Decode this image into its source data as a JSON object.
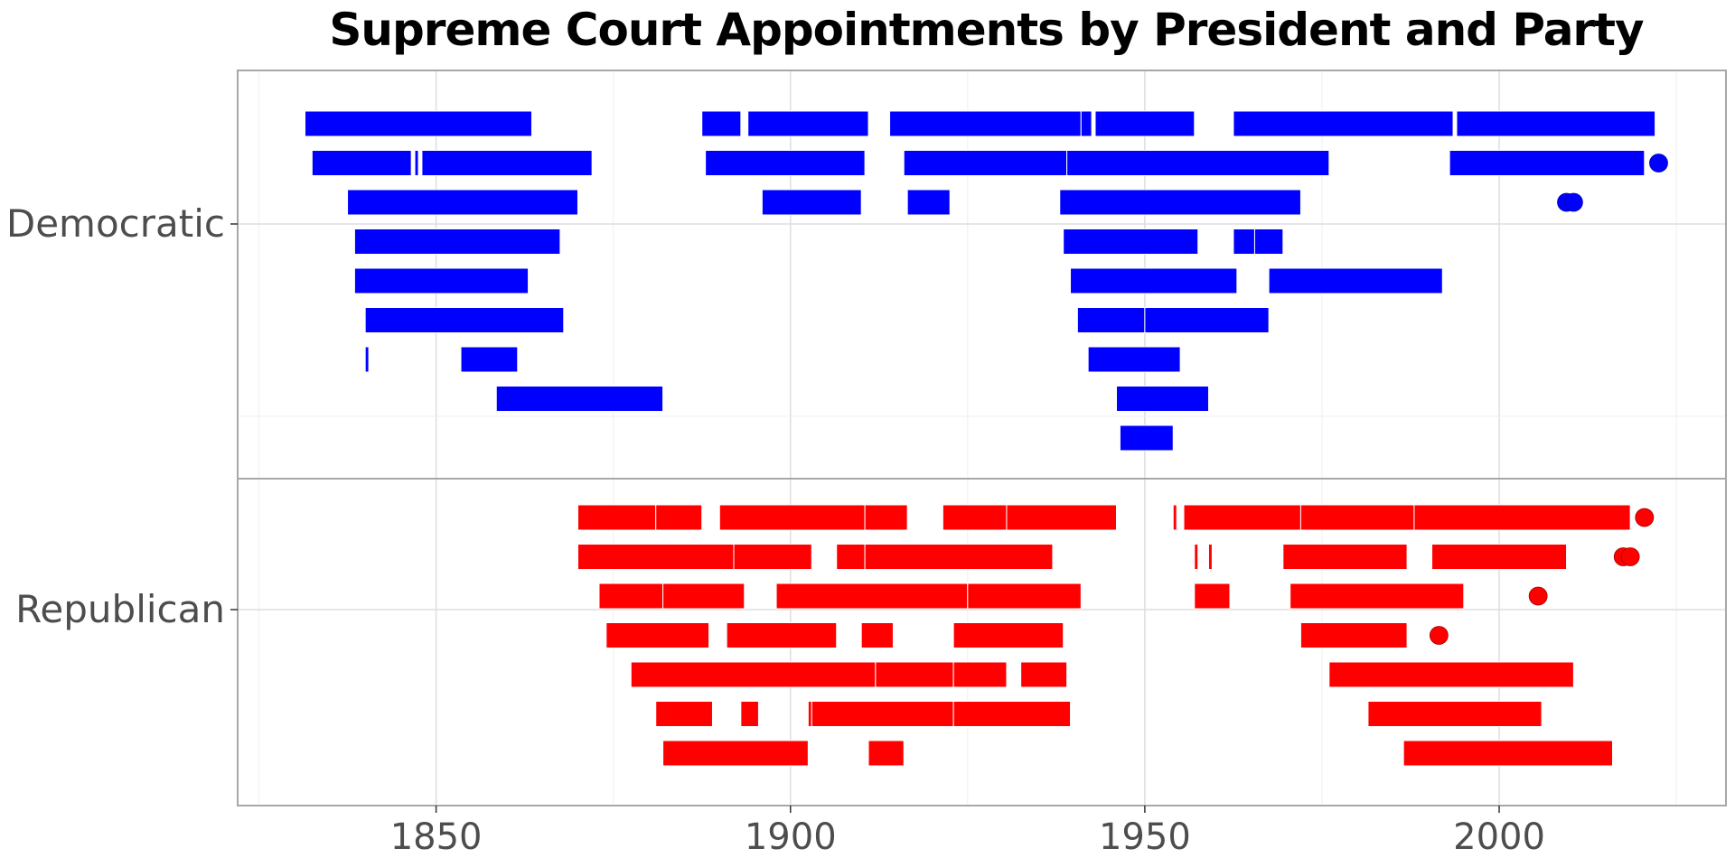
{
  "chart_data": {
    "type": "bar",
    "title": "Supreme Court Appointments by President and Party",
    "xlabel": "",
    "ylabel": "",
    "xlim": [
      1822,
      2032
    ],
    "x_ticks": [
      1850,
      1900,
      1950,
      2000
    ],
    "grid": true,
    "legend": "none",
    "colors": {
      "Democratic": "#0000ff",
      "Republican": "#ff0000"
    },
    "panels": [
      {
        "name": "Democratic",
        "rows": [
          {
            "segments": [
              [
                1831.5,
                1863.5
              ],
              [
                1887.5,
                1893.0
              ],
              [
                1894.0,
                1911.0
              ],
              [
                1914.0,
                1941.0
              ],
              [
                1941.0,
                1942.5
              ],
              [
                1943.0,
                1957.0
              ],
              [
                1962.5,
                1993.5
              ],
              [
                1994.0,
                2022.0
              ]
            ],
            "points": []
          },
          {
            "segments": [
              [
                1832.5,
                1846.5
              ],
              [
                1847.0,
                1847.5
              ],
              [
                1848.0,
                1872.0
              ],
              [
                1888.0,
                1910.5
              ],
              [
                1916.0,
                1939.0
              ],
              [
                1939.0,
                1976.0
              ],
              [
                1993.0,
                2020.5
              ]
            ],
            "points": [
              2022.5
            ]
          },
          {
            "segments": [
              [
                1837.5,
                1870.0
              ],
              [
                1896.0,
                1910.0
              ],
              [
                1916.5,
                1922.5
              ],
              [
                1938.0,
                1972.0
              ]
            ],
            "points": [
              2009.5,
              2010.5
            ]
          },
          {
            "segments": [
              [
                1838.5,
                1867.5
              ],
              [
                1938.5,
                1957.5
              ],
              [
                1962.5,
                1965.5
              ],
              [
                1965.5,
                1969.5
              ]
            ],
            "points": []
          },
          {
            "segments": [
              [
                1838.5,
                1863.0
              ],
              [
                1939.5,
                1963.0
              ],
              [
                1967.5,
                1992.0
              ]
            ],
            "points": []
          },
          {
            "segments": [
              [
                1840.0,
                1868.0
              ],
              [
                1940.5,
                1950.0
              ],
              [
                1950.0,
                1967.5
              ]
            ],
            "points": []
          },
          {
            "segments": [
              [
                1840.0,
                1840.5
              ],
              [
                1853.5,
                1861.5
              ],
              [
                1942.0,
                1955.0
              ]
            ],
            "points": []
          },
          {
            "segments": [
              [
                1858.5,
                1882.0
              ],
              [
                1946.0,
                1959.0
              ]
            ],
            "points": []
          },
          {
            "segments": [
              [
                1946.5,
                1954.0
              ]
            ],
            "points": []
          }
        ]
      },
      {
        "name": "Republican",
        "rows": [
          {
            "segments": [
              [
                1870.0,
                1881.0
              ],
              [
                1881.0,
                1887.5
              ],
              [
                1890.0,
                1910.5
              ],
              [
                1910.5,
                1916.5
              ],
              [
                1921.5,
                1930.5
              ],
              [
                1930.5,
                1946.0
              ],
              [
                1954.0,
                1954.5
              ],
              [
                1955.5,
                1972.0
              ],
              [
                1972.0,
                1988.0
              ],
              [
                1988.0,
                2018.5
              ]
            ],
            "points": [
              2020.5
            ]
          },
          {
            "segments": [
              [
                1870.0,
                1892.0
              ],
              [
                1892.0,
                1903.0
              ],
              [
                1906.5,
                1910.5
              ],
              [
                1910.5,
                1937.0
              ],
              [
                1957.0,
                1957.5
              ],
              [
                1959.0,
                1959.5
              ],
              [
                1969.5,
                1987.0
              ],
              [
                1990.5,
                2009.5
              ]
            ],
            "points": [
              2017.5,
              2018.5
            ]
          },
          {
            "segments": [
              [
                1873.0,
                1882.0
              ],
              [
                1882.0,
                1893.5
              ],
              [
                1898.0,
                1925.0
              ],
              [
                1925.0,
                1941.0
              ],
              [
                1957.0,
                1962.0
              ],
              [
                1970.5,
                1995.0
              ]
            ],
            "points": [
              2005.5
            ]
          },
          {
            "segments": [
              [
                1874.0,
                1888.5
              ],
              [
                1891.0,
                1906.5
              ],
              [
                1910.0,
                1914.5
              ],
              [
                1923.0,
                1938.5
              ],
              [
                1972.0,
                1987.0
              ]
            ],
            "points": [
              1991.5
            ]
          },
          {
            "segments": [
              [
                1877.5,
                1912.0
              ],
              [
                1912.0,
                1923.0
              ],
              [
                1923.0,
                1930.5
              ],
              [
                1932.5,
                1939.0
              ],
              [
                1976.0,
                2010.5
              ]
            ],
            "points": []
          },
          {
            "segments": [
              [
                1881.0,
                1889.0
              ],
              [
                1893.0,
                1895.5
              ],
              [
                1902.5,
                1903.0
              ],
              [
                1903.0,
                1923.0
              ],
              [
                1923.0,
                1939.5
              ],
              [
                1981.5,
                2006.0
              ]
            ],
            "points": []
          },
          {
            "segments": [
              [
                1882.0,
                1902.5
              ],
              [
                1911.0,
                1916.0
              ],
              [
                1986.5,
                2016.0
              ]
            ],
            "points": []
          }
        ]
      }
    ]
  }
}
